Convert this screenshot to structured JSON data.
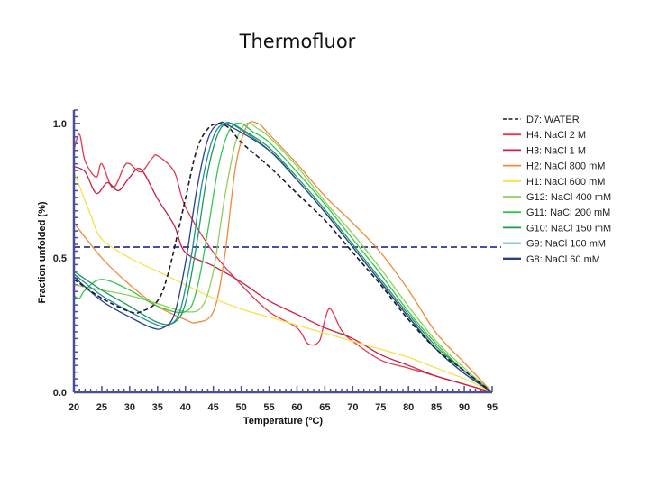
{
  "chart_data": {
    "type": "line",
    "title": "Thermofluor",
    "xlabel": "Temperature (ºC)",
    "ylabel": "Fraction unfolded (%)",
    "xlim": [
      20,
      95
    ],
    "ylim": [
      0,
      1.05
    ],
    "xticks": [
      "20",
      "25",
      "30",
      "35",
      "40",
      "45",
      "50",
      "55",
      "60",
      "65",
      "70",
      "75",
      "80",
      "85",
      "90",
      "95"
    ],
    "yticks": [
      "0.0",
      "0.5",
      "1.0"
    ],
    "threshold": 0.54,
    "threshold_color": "#4a4f9a",
    "legend_position": "right",
    "series": [
      {
        "name": "D7: WATER",
        "color": "#1a1a2e",
        "dashed": true,
        "x": [
          20,
          25,
          30,
          32,
          35,
          37,
          40,
          42,
          44,
          46,
          48,
          50,
          55,
          60,
          65,
          70,
          75,
          80,
          85,
          90,
          95
        ],
        "y": [
          0.42,
          0.35,
          0.3,
          0.3,
          0.34,
          0.45,
          0.72,
          0.9,
          0.98,
          1.0,
          0.98,
          0.93,
          0.84,
          0.74,
          0.64,
          0.52,
          0.4,
          0.27,
          0.16,
          0.08,
          0.0
        ]
      },
      {
        "name": "H4: NaCl 2 M",
        "color": "#e03a4e",
        "dashed": false,
        "x": [
          20,
          21,
          22,
          24,
          25,
          27,
          29,
          30,
          32,
          34,
          35,
          38,
          40,
          45,
          50,
          55,
          60,
          62,
          64,
          65,
          66,
          68,
          70,
          75,
          80,
          85,
          90,
          95
        ],
        "y": [
          0.9,
          0.96,
          0.86,
          0.8,
          0.85,
          0.76,
          0.84,
          0.85,
          0.82,
          0.87,
          0.88,
          0.82,
          0.69,
          0.52,
          0.4,
          0.3,
          0.24,
          0.18,
          0.19,
          0.27,
          0.31,
          0.23,
          0.19,
          0.12,
          0.09,
          0.06,
          0.03,
          0.0
        ]
      },
      {
        "name": "H3: NaCl 1 M",
        "color": "#c82044",
        "dashed": false,
        "x": [
          20,
          22,
          24,
          26,
          28,
          30,
          32,
          35,
          38,
          40,
          45,
          50,
          55,
          60,
          65,
          70,
          75,
          80,
          85,
          90,
          95
        ],
        "y": [
          0.84,
          0.82,
          0.74,
          0.78,
          0.75,
          0.8,
          0.83,
          0.72,
          0.62,
          0.52,
          0.47,
          0.41,
          0.34,
          0.29,
          0.24,
          0.2,
          0.14,
          0.1,
          0.06,
          0.03,
          0.0
        ]
      },
      {
        "name": "H2: NaCl 800 mM",
        "color": "#f08a3a",
        "dashed": false,
        "x": [
          20,
          25,
          30,
          35,
          40,
          42,
          45,
          47,
          49,
          51,
          53,
          55,
          60,
          65,
          70,
          75,
          80,
          85,
          90,
          95
        ],
        "y": [
          0.63,
          0.5,
          0.4,
          0.32,
          0.27,
          0.26,
          0.3,
          0.5,
          0.84,
          0.99,
          1.0,
          0.96,
          0.85,
          0.73,
          0.63,
          0.52,
          0.38,
          0.22,
          0.11,
          0.0
        ]
      },
      {
        "name": "H1: NaCl 600 mM",
        "color": "#f5e24a",
        "dashed": false,
        "x": [
          20,
          23,
          25,
          30,
          35,
          40,
          45,
          50,
          55,
          60,
          65,
          70,
          75,
          80,
          85,
          90,
          95
        ],
        "y": [
          0.82,
          0.66,
          0.57,
          0.5,
          0.45,
          0.4,
          0.35,
          0.31,
          0.28,
          0.25,
          0.22,
          0.19,
          0.16,
          0.13,
          0.09,
          0.05,
          0.0
        ]
      },
      {
        "name": "G12: NaCl 400 mM",
        "color": "#8fd15a",
        "dashed": false,
        "x": [
          20,
          25,
          30,
          35,
          40,
          43,
          45,
          47,
          49,
          51,
          53,
          55,
          60,
          65,
          70,
          75,
          80,
          85,
          90,
          95
        ],
        "y": [
          0.4,
          0.38,
          0.36,
          0.33,
          0.3,
          0.32,
          0.45,
          0.72,
          0.93,
          1.0,
          0.98,
          0.95,
          0.84,
          0.71,
          0.59,
          0.46,
          0.32,
          0.19,
          0.09,
          0.0
        ]
      },
      {
        "name": "G11: NaCl 200 mM",
        "color": "#33c84a",
        "dashed": false,
        "x": [
          20,
          21,
          22,
          25,
          30,
          35,
          40,
          42,
          44,
          46,
          48,
          50,
          52,
          55,
          60,
          65,
          70,
          75,
          80,
          85,
          90,
          95
        ],
        "y": [
          0.36,
          0.35,
          0.38,
          0.42,
          0.38,
          0.32,
          0.3,
          0.38,
          0.6,
          0.85,
          0.98,
          1.0,
          0.97,
          0.93,
          0.82,
          0.7,
          0.57,
          0.44,
          0.3,
          0.18,
          0.08,
          0.0
        ]
      },
      {
        "name": "G10: NaCl 150 mM",
        "color": "#1f9a5a",
        "dashed": false,
        "x": [
          20,
          25,
          30,
          35,
          38,
          40,
          42,
          44,
          46,
          48,
          50,
          55,
          60,
          65,
          70,
          75,
          80,
          85,
          90,
          95
        ],
        "y": [
          0.45,
          0.38,
          0.32,
          0.26,
          0.26,
          0.33,
          0.55,
          0.82,
          0.97,
          1.0,
          0.98,
          0.91,
          0.8,
          0.68,
          0.55,
          0.42,
          0.29,
          0.17,
          0.08,
          0.0
        ]
      },
      {
        "name": "G9: NaCl 100 mM",
        "color": "#1f8f9a",
        "dashed": false,
        "x": [
          20,
          25,
          30,
          35,
          37,
          39,
          41,
          43,
          45,
          47,
          49,
          55,
          60,
          65,
          70,
          75,
          80,
          85,
          90,
          95
        ],
        "y": [
          0.44,
          0.36,
          0.3,
          0.25,
          0.25,
          0.3,
          0.5,
          0.78,
          0.95,
          1.0,
          0.99,
          0.9,
          0.79,
          0.67,
          0.54,
          0.41,
          0.28,
          0.16,
          0.07,
          0.0
        ]
      },
      {
        "name": "G8: NaCl 60 mM",
        "color": "#2a3f8f",
        "dashed": false,
        "x": [
          20,
          25,
          30,
          34,
          36,
          38,
          40,
          42,
          44,
          46,
          48,
          55,
          60,
          65,
          70,
          75,
          80,
          85,
          90,
          95
        ],
        "y": [
          0.43,
          0.34,
          0.28,
          0.24,
          0.24,
          0.29,
          0.48,
          0.75,
          0.94,
          1.0,
          0.99,
          0.9,
          0.79,
          0.67,
          0.54,
          0.41,
          0.28,
          0.16,
          0.07,
          0.0
        ]
      }
    ]
  }
}
